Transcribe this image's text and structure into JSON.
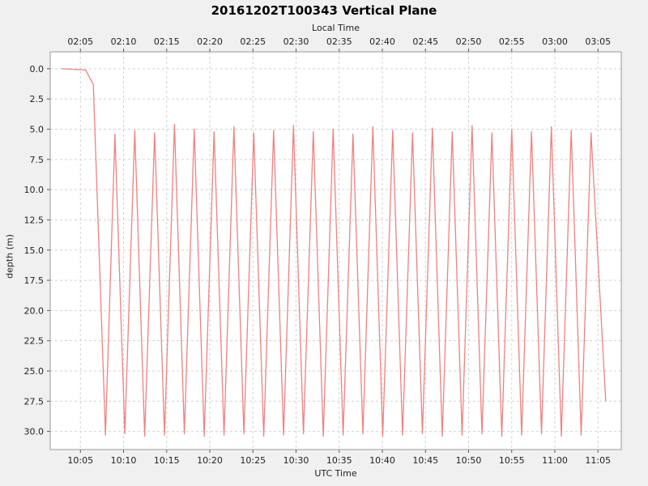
{
  "chart_data": {
    "type": "line",
    "title": "20161202T100343 Vertical Plane",
    "top_axis_title": "Local Time",
    "xlabel": "UTC Time",
    "ylabel": "depth (m)",
    "line_color": "#f08080",
    "background_color": "#f0f0f0",
    "plot_background": "#ffffff",
    "grid_color": "#d3d3d3",
    "border_color": "#999999",
    "tick_label_color": "#222222",
    "x_tick_values_min_after_10utc": [
      5,
      10,
      15,
      20,
      25,
      30,
      35,
      40,
      45,
      50,
      55,
      60,
      65
    ],
    "utc_tick_labels": [
      "10:05",
      "10:10",
      "10:15",
      "10:20",
      "10:25",
      "10:30",
      "10:35",
      "10:40",
      "10:45",
      "10:50",
      "10:55",
      "11:00",
      "11:05"
    ],
    "local_tick_labels": [
      "02:05",
      "02:10",
      "02:15",
      "02:20",
      "02:25",
      "02:30",
      "02:35",
      "02:40",
      "02:45",
      "02:50",
      "02:55",
      "03:00",
      "03:05"
    ],
    "y_tick_values": [
      0,
      2.5,
      5,
      7.5,
      10,
      12.5,
      15,
      17.5,
      20,
      22.5,
      25,
      27.5,
      30
    ],
    "y_tick_labels": [
      "0.0",
      "2.5",
      "5.0",
      "7.5",
      "10.0",
      "12.5",
      "15.0",
      "17.5",
      "20.0",
      "22.5",
      "25.0",
      "27.5",
      "30.0"
    ],
    "x_domain_min_after_10utc": [
      1.5,
      67.7
    ],
    "y_domain_depth_m": [
      -1.4,
      31.5
    ],
    "points_minutes_depth": [
      [
        2.8,
        0.0
      ],
      [
        5.6,
        0.1
      ],
      [
        6.5,
        1.3
      ],
      [
        7.9,
        30.3
      ],
      [
        9.0,
        5.4
      ],
      [
        10.15,
        30.2
      ],
      [
        11.3,
        5.1
      ],
      [
        12.45,
        30.4
      ],
      [
        13.6,
        5.3
      ],
      [
        14.75,
        30.3
      ],
      [
        15.9,
        4.6
      ],
      [
        17.05,
        30.2
      ],
      [
        18.2,
        5.0
      ],
      [
        19.35,
        30.4
      ],
      [
        20.5,
        5.2
      ],
      [
        21.65,
        30.3
      ],
      [
        22.8,
        4.8
      ],
      [
        23.95,
        30.2
      ],
      [
        25.1,
        5.3
      ],
      [
        26.25,
        30.4
      ],
      [
        27.4,
        5.1
      ],
      [
        28.55,
        30.3
      ],
      [
        29.7,
        4.7
      ],
      [
        30.85,
        30.2
      ],
      [
        32.0,
        5.2
      ],
      [
        33.15,
        30.4
      ],
      [
        34.3,
        5.0
      ],
      [
        35.45,
        30.3
      ],
      [
        36.6,
        5.4
      ],
      [
        37.75,
        30.2
      ],
      [
        38.9,
        4.8
      ],
      [
        40.05,
        30.4
      ],
      [
        41.2,
        5.1
      ],
      [
        42.35,
        30.3
      ],
      [
        43.5,
        5.3
      ],
      [
        44.65,
        30.2
      ],
      [
        45.8,
        4.9
      ],
      [
        46.95,
        30.4
      ],
      [
        48.1,
        5.2
      ],
      [
        49.25,
        30.3
      ],
      [
        50.4,
        4.7
      ],
      [
        51.55,
        30.2
      ],
      [
        52.7,
        5.3
      ],
      [
        53.85,
        30.4
      ],
      [
        55.0,
        5.0
      ],
      [
        56.15,
        30.3
      ],
      [
        57.3,
        5.2
      ],
      [
        58.45,
        30.2
      ],
      [
        59.6,
        4.8
      ],
      [
        60.75,
        30.4
      ],
      [
        61.9,
        5.1
      ],
      [
        63.05,
        30.3
      ],
      [
        64.2,
        5.3
      ],
      [
        65.9,
        27.5
      ]
    ]
  }
}
